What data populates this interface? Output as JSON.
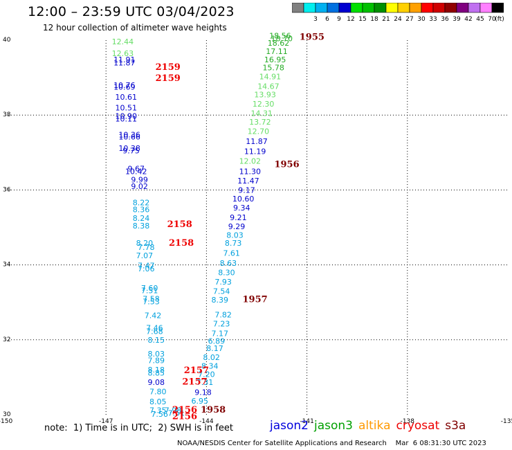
{
  "header": {
    "title": "12:00 – 23:59 UTC 03/04/2023",
    "subtitle": "12 hour collection of altimeter wave heights"
  },
  "scale": {
    "unit": "(ft)",
    "bins": [
      {
        "label": "",
        "color": "#808080"
      },
      {
        "label": "3",
        "color": "#00eeee"
      },
      {
        "label": "6",
        "color": "#00b0f0"
      },
      {
        "label": "9",
        "color": "#0070e0"
      },
      {
        "label": "12",
        "color": "#0000d0"
      },
      {
        "label": "15",
        "color": "#00e000"
      },
      {
        "label": "18",
        "color": "#00c000"
      },
      {
        "label": "21",
        "color": "#009000"
      },
      {
        "label": "24",
        "color": "#ffff00"
      },
      {
        "label": "27",
        "color": "#ffd000"
      },
      {
        "label": "30",
        "color": "#ffa000"
      },
      {
        "label": "33",
        "color": "#ff0000"
      },
      {
        "label": "36",
        "color": "#d00000"
      },
      {
        "label": "39",
        "color": "#900000"
      },
      {
        "label": "42",
        "color": "#800080"
      },
      {
        "label": "45",
        "color": "#c070f0"
      },
      {
        "label": "70",
        "color": "#ff80ff"
      },
      {
        "label": "",
        "color": "#000000"
      }
    ]
  },
  "note": "note:  1) Time is in UTC;  2) SWH is in feet",
  "satellites": [
    {
      "name": "jason2",
      "color": "#0000dd"
    },
    {
      "name": "jason3",
      "color": "#00a000"
    },
    {
      "name": "altika",
      "color": "#ff9900"
    },
    {
      "name": "cryosat",
      "color": "#ee0000"
    },
    {
      "name": "s3a",
      "color": "#800000"
    }
  ],
  "footer": "NOAA/NESDIS Center for Satellite Applications and Research    Mar  6 08:31:30 UTC 2023",
  "chart_data": {
    "type": "scatter",
    "xlabel": "",
    "ylabel": "",
    "xlim": [
      -150,
      -135
    ],
    "ylim": [
      30,
      40
    ],
    "xticks": [
      -150,
      -147,
      -144,
      -141,
      -138,
      -135
    ],
    "yticks": [
      30,
      32,
      34,
      36,
      38,
      40
    ],
    "grid": true,
    "colors": {
      "pale_green": "#66dd66",
      "green": "#22aa22",
      "blue": "#0000cc",
      "cyan": "#00a0dd",
      "red": "#ee0000",
      "maroon": "#800000"
    },
    "wave_heights": [
      {
        "x": -146.5,
        "y": 39.96,
        "label": "12.44",
        "color": "pale_green"
      },
      {
        "x": -146.5,
        "y": 39.65,
        "label": "12.63",
        "color": "pale_green"
      },
      {
        "x": -146.45,
        "y": 39.48,
        "label": "11.91",
        "color": "blue"
      },
      {
        "x": -146.45,
        "y": 39.4,
        "label": "11.87",
        "color": "blue"
      },
      {
        "x": -146.45,
        "y": 38.8,
        "label": "10.76",
        "color": "blue"
      },
      {
        "x": -146.45,
        "y": 38.75,
        "label": "10.69",
        "color": "blue"
      },
      {
        "x": -146.4,
        "y": 38.48,
        "label": "10.61",
        "color": "blue"
      },
      {
        "x": -146.4,
        "y": 38.2,
        "label": "10.51",
        "color": "blue"
      },
      {
        "x": -146.4,
        "y": 37.98,
        "label": "10.90",
        "color": "blue"
      },
      {
        "x": -146.4,
        "y": 37.9,
        "label": "10.11",
        "color": "blue"
      },
      {
        "x": -146.3,
        "y": 37.48,
        "label": "10.36",
        "color": "blue"
      },
      {
        "x": -146.3,
        "y": 37.42,
        "label": "10.66",
        "color": "blue"
      },
      {
        "x": -146.3,
        "y": 37.12,
        "label": "10.38",
        "color": "blue"
      },
      {
        "x": -146.25,
        "y": 37.05,
        "label": "9.75",
        "color": "blue"
      },
      {
        "x": -146.1,
        "y": 36.57,
        "label": "9.67",
        "color": "blue"
      },
      {
        "x": -146.1,
        "y": 36.5,
        "label": "10.42",
        "color": "blue"
      },
      {
        "x": -146.0,
        "y": 36.28,
        "label": "9.99",
        "color": "blue"
      },
      {
        "x": -146.0,
        "y": 36.1,
        "label": "9.02",
        "color": "blue"
      },
      {
        "x": -145.95,
        "y": 35.67,
        "label": "8.22",
        "color": "cyan"
      },
      {
        "x": -145.95,
        "y": 35.48,
        "label": "8.36",
        "color": "cyan"
      },
      {
        "x": -145.95,
        "y": 35.25,
        "label": "8.24",
        "color": "cyan"
      },
      {
        "x": -145.95,
        "y": 35.05,
        "label": "8.38",
        "color": "cyan"
      },
      {
        "x": -145.85,
        "y": 34.58,
        "label": "8.20",
        "color": "cyan"
      },
      {
        "x": -145.8,
        "y": 34.47,
        "label": "7.78",
        "color": "cyan"
      },
      {
        "x": -145.85,
        "y": 34.25,
        "label": "7.07",
        "color": "cyan"
      },
      {
        "x": -145.8,
        "y": 33.98,
        "label": "7.47",
        "color": "cyan"
      },
      {
        "x": -145.8,
        "y": 33.9,
        "label": "7.06",
        "color": "cyan"
      },
      {
        "x": -145.7,
        "y": 33.38,
        "label": "7.60",
        "color": "cyan"
      },
      {
        "x": -145.7,
        "y": 33.32,
        "label": "7.51",
        "color": "cyan"
      },
      {
        "x": -145.65,
        "y": 33.1,
        "label": "7.58",
        "color": "cyan"
      },
      {
        "x": -145.65,
        "y": 33.02,
        "label": "7.53",
        "color": "cyan"
      },
      {
        "x": -145.6,
        "y": 32.65,
        "label": "7.42",
        "color": "cyan"
      },
      {
        "x": -145.55,
        "y": 32.32,
        "label": "7.46",
        "color": "cyan"
      },
      {
        "x": -145.55,
        "y": 32.23,
        "label": "7.68",
        "color": "cyan"
      },
      {
        "x": -145.5,
        "y": 32.0,
        "label": "8.15",
        "color": "cyan"
      },
      {
        "x": -145.5,
        "y": 31.63,
        "label": "8.03",
        "color": "cyan"
      },
      {
        "x": -145.5,
        "y": 31.45,
        "label": "7.89",
        "color": "cyan"
      },
      {
        "x": -145.5,
        "y": 31.2,
        "label": "8.18",
        "color": "cyan"
      },
      {
        "x": -145.5,
        "y": 31.12,
        "label": "8.85",
        "color": "cyan"
      },
      {
        "x": -145.5,
        "y": 30.87,
        "label": "9.08",
        "color": "blue"
      },
      {
        "x": -145.45,
        "y": 30.62,
        "label": "7.80",
        "color": "cyan"
      },
      {
        "x": -145.45,
        "y": 30.35,
        "label": "8.05",
        "color": "cyan"
      },
      {
        "x": -145.45,
        "y": 30.12,
        "label": "7.35",
        "color": "cyan"
      },
      {
        "x": -145.4,
        "y": 30.02,
        "label": "7.56",
        "color": "cyan"
      },
      {
        "x": -145.0,
        "y": 30.12,
        "label": "7.98",
        "color": "cyan"
      },
      {
        "x": -144.9,
        "y": 30.05,
        "label": "7.51",
        "color": "cyan"
      },
      {
        "x": -144.2,
        "y": 30.37,
        "label": "6.95",
        "color": "cyan"
      },
      {
        "x": -144.1,
        "y": 30.6,
        "label": "9.18",
        "color": "blue"
      },
      {
        "x": -144.05,
        "y": 30.87,
        "label": "7.31",
        "color": "cyan"
      },
      {
        "x": -144.0,
        "y": 31.08,
        "label": "7.20",
        "color": "cyan"
      },
      {
        "x": -143.9,
        "y": 31.3,
        "label": "8.34",
        "color": "cyan"
      },
      {
        "x": -143.85,
        "y": 31.53,
        "label": "8.02",
        "color": "cyan"
      },
      {
        "x": -143.75,
        "y": 31.77,
        "label": "8.17",
        "color": "cyan"
      },
      {
        "x": -143.7,
        "y": 31.97,
        "label": "6.89",
        "color": "cyan"
      },
      {
        "x": -143.6,
        "y": 32.17,
        "label": "7.17",
        "color": "cyan"
      },
      {
        "x": -143.55,
        "y": 32.43,
        "label": "7.23",
        "color": "cyan"
      },
      {
        "x": -143.5,
        "y": 32.67,
        "label": "7.82",
        "color": "cyan"
      },
      {
        "x": -143.6,
        "y": 33.07,
        "label": "8.39",
        "color": "cyan"
      },
      {
        "x": -143.55,
        "y": 33.3,
        "label": "7.54",
        "color": "cyan"
      },
      {
        "x": -143.5,
        "y": 33.55,
        "label": "7.93",
        "color": "cyan"
      },
      {
        "x": -143.4,
        "y": 33.8,
        "label": "8.30",
        "color": "cyan"
      },
      {
        "x": -143.35,
        "y": 34.05,
        "label": "8.63",
        "color": "cyan"
      },
      {
        "x": -143.25,
        "y": 34.32,
        "label": "7.61",
        "color": "cyan"
      },
      {
        "x": -143.2,
        "y": 34.58,
        "label": "8.73",
        "color": "cyan"
      },
      {
        "x": -143.15,
        "y": 34.8,
        "label": "8.03",
        "color": "cyan"
      },
      {
        "x": -143.1,
        "y": 35.03,
        "label": "9.29",
        "color": "blue"
      },
      {
        "x": -143.05,
        "y": 35.27,
        "label": "9.21",
        "color": "blue"
      },
      {
        "x": -142.95,
        "y": 35.53,
        "label": "9.34",
        "color": "blue"
      },
      {
        "x": -142.9,
        "y": 35.77,
        "label": "10.60",
        "color": "blue"
      },
      {
        "x": -142.8,
        "y": 36.0,
        "label": "9.17",
        "color": "blue"
      },
      {
        "x": -142.75,
        "y": 36.25,
        "label": "11.47",
        "color": "blue"
      },
      {
        "x": -142.7,
        "y": 36.5,
        "label": "11.30",
        "color": "blue"
      },
      {
        "x": -142.7,
        "y": 36.77,
        "label": "12.02",
        "color": "pale_green"
      },
      {
        "x": -142.55,
        "y": 37.03,
        "label": "11.19",
        "color": "blue"
      },
      {
        "x": -142.5,
        "y": 37.3,
        "label": "11.87",
        "color": "blue"
      },
      {
        "x": -142.45,
        "y": 37.57,
        "label": "12.70",
        "color": "pale_green"
      },
      {
        "x": -142.4,
        "y": 37.82,
        "label": "13.72",
        "color": "pale_green"
      },
      {
        "x": -142.35,
        "y": 38.05,
        "label": "14.31",
        "color": "pale_green"
      },
      {
        "x": -142.3,
        "y": 38.3,
        "label": "12.30",
        "color": "pale_green"
      },
      {
        "x": -142.25,
        "y": 38.55,
        "label": "13.93",
        "color": "pale_green"
      },
      {
        "x": -142.15,
        "y": 38.77,
        "label": "14.67",
        "color": "pale_green"
      },
      {
        "x": -142.1,
        "y": 39.03,
        "label": "14.91",
        "color": "pale_green"
      },
      {
        "x": -142.0,
        "y": 39.27,
        "label": "15.78",
        "color": "green"
      },
      {
        "x": -141.95,
        "y": 39.48,
        "label": "16.95",
        "color": "green"
      },
      {
        "x": -141.9,
        "y": 39.7,
        "label": "17.11",
        "color": "green"
      },
      {
        "x": -141.85,
        "y": 39.93,
        "label": "18.62",
        "color": "green"
      },
      {
        "x": -141.8,
        "y": 40.12,
        "label": "18.56",
        "color": "green"
      },
      {
        "x": -141.75,
        "y": 40.05,
        "label": "18.70",
        "color": "green"
      }
    ],
    "pass_times": [
      {
        "x": -145.15,
        "y": 39.3,
        "label": "2159",
        "color": "red"
      },
      {
        "x": -145.15,
        "y": 39.0,
        "label": "2159",
        "color": "red"
      },
      {
        "x": -144.8,
        "y": 35.1,
        "label": "2158",
        "color": "red"
      },
      {
        "x": -144.75,
        "y": 34.6,
        "label": "2158",
        "color": "red"
      },
      {
        "x": -144.3,
        "y": 31.2,
        "label": "2157",
        "color": "red"
      },
      {
        "x": -144.35,
        "y": 30.9,
        "label": "2157",
        "color": "red"
      },
      {
        "x": -144.65,
        "y": 30.15,
        "label": "2156",
        "color": "red"
      },
      {
        "x": -144.65,
        "y": 29.97,
        "label": "2156",
        "color": "red"
      },
      {
        "x": -143.8,
        "y": 30.15,
        "label": "1958",
        "color": "maroon"
      },
      {
        "x": -142.55,
        "y": 33.1,
        "label": "1957",
        "color": "maroon"
      },
      {
        "x": -141.6,
        "y": 36.7,
        "label": "1956",
        "color": "maroon"
      },
      {
        "x": -140.85,
        "y": 40.1,
        "label": "1955",
        "color": "maroon"
      }
    ]
  }
}
